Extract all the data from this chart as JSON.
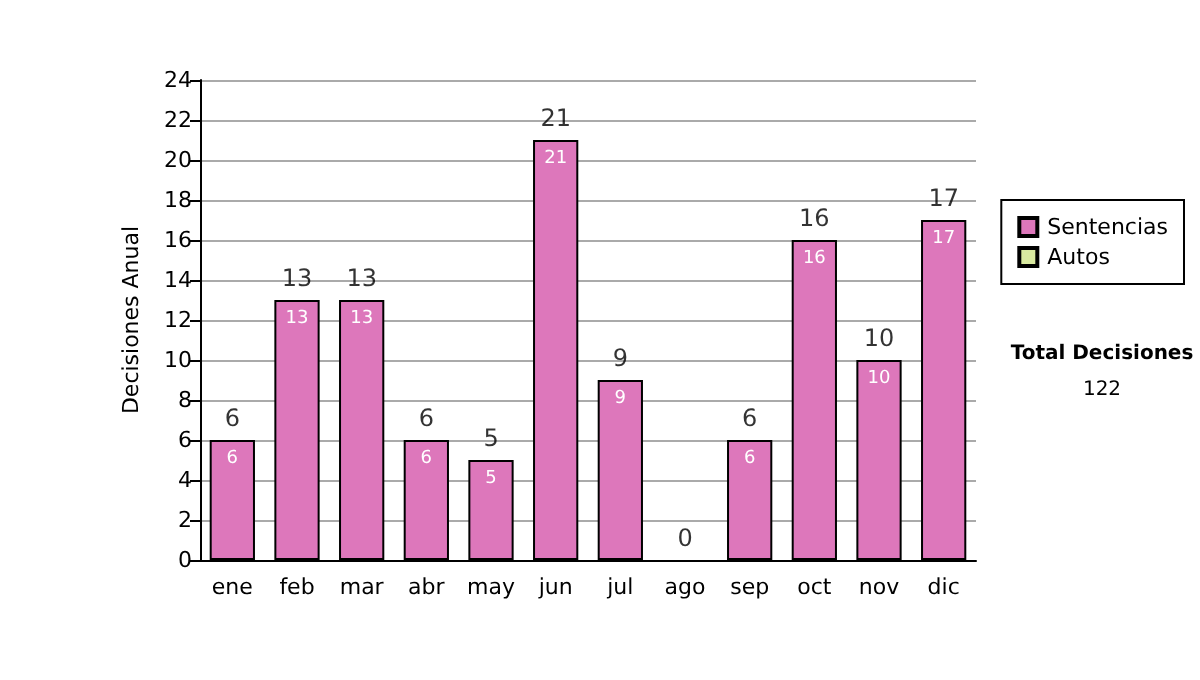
{
  "chart_data": {
    "type": "bar",
    "ylabel": "Decisiones Anual",
    "categories": [
      "ene",
      "feb",
      "mar",
      "abr",
      "may",
      "jun",
      "jul",
      "ago",
      "sep",
      "oct",
      "nov",
      "dic"
    ],
    "series": [
      {
        "name": "Sentencias",
        "color": "#dd77bb",
        "values": [
          6,
          13,
          13,
          6,
          5,
          21,
          9,
          0,
          6,
          16,
          10,
          17
        ],
        "value_labels": [
          "6",
          "13",
          "13",
          "6",
          "5",
          "21",
          "9",
          null,
          "6",
          "16",
          "10",
          "17"
        ]
      },
      {
        "name": "Autos",
        "color": "#d9eaa0",
        "values": [
          0,
          0,
          0,
          0,
          0,
          0,
          0,
          0,
          0,
          0,
          0,
          0
        ]
      }
    ],
    "stacked": true,
    "totals": [
      "6",
      "13",
      "13",
      "6",
      "5",
      "21",
      "9",
      "0",
      "6",
      "16",
      "10",
      "17"
    ],
    "ylim": [
      0,
      24
    ],
    "yticks": [
      0,
      2,
      4,
      6,
      8,
      10,
      12,
      14,
      16,
      18,
      20,
      22,
      24
    ],
    "grid": "y",
    "legend": "right",
    "annotations": [
      "Total Decisiones",
      "122"
    ]
  }
}
